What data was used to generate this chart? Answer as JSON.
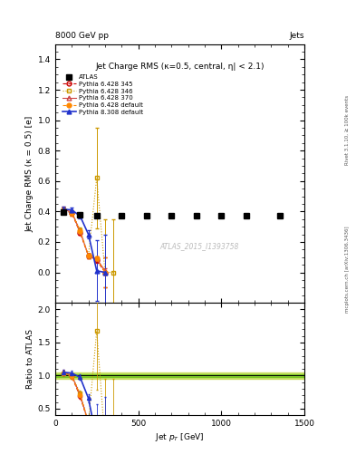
{
  "title": "Jet Charge RMS (κ=0.5, central, η| < 2.1)",
  "header_left": "8000 GeV pp",
  "header_right": "Jets",
  "ylabel_main": "Jet Charge RMS (kappa = 0.5) [e]",
  "ylabel_ratio": "Ratio to ATLAS",
  "xlabel": "Jet p_{T} [GeV]",
  "watermark": "ATLAS_2015_I1393758",
  "right_label": "mcplots.cern.ch [arXiv:1306.3436]",
  "right_label2": "Rivet 3.1.10, ≥ 100k events",
  "atlas_x": [
    50,
    150,
    250,
    400,
    550,
    700,
    850,
    1000,
    1150,
    1350
  ],
  "atlas_y": [
    0.395,
    0.38,
    0.37,
    0.37,
    0.37,
    0.37,
    0.37,
    0.37,
    0.37,
    0.37
  ],
  "atlas_yerr": [
    0.01,
    0.005,
    0.005,
    0.005,
    0.005,
    0.005,
    0.005,
    0.005,
    0.005,
    0.005
  ],
  "p6_345_x": [
    50,
    100,
    150,
    200,
    250,
    300
  ],
  "p6_345_y": [
    0.41,
    0.39,
    0.26,
    0.11,
    0.08,
    0.0
  ],
  "p6_345_yerr": [
    0.015,
    0.015,
    0.015,
    0.015,
    0.015,
    0.1
  ],
  "p6_346_x": [
    50,
    100,
    150,
    200,
    250,
    300,
    350
  ],
  "p6_346_y": [
    0.41,
    0.395,
    0.28,
    0.11,
    0.62,
    0.0,
    0.0
  ],
  "p6_346_yerr": [
    0.015,
    0.015,
    0.015,
    0.015,
    0.33,
    0.35,
    0.35
  ],
  "p6_370_x": [
    50,
    100,
    150,
    200,
    250,
    300
  ],
  "p6_370_y": [
    0.415,
    0.395,
    0.27,
    0.11,
    0.09,
    0.01
  ],
  "p6_370_yerr": [
    0.015,
    0.015,
    0.015,
    0.015,
    0.015,
    0.015
  ],
  "p6_def_x": [
    50,
    100,
    150,
    200,
    250,
    300
  ],
  "p6_def_y": [
    0.41,
    0.39,
    0.27,
    0.11,
    0.09,
    0.0
  ],
  "p6_def_yerr": [
    0.015,
    0.015,
    0.015,
    0.015,
    0.015,
    0.1
  ],
  "p8_def_x": [
    50,
    100,
    150,
    200,
    250,
    300
  ],
  "p8_def_y": [
    0.415,
    0.41,
    0.37,
    0.25,
    0.01,
    0.0
  ],
  "p8_def_yerr": [
    0.015,
    0.015,
    0.015,
    0.025,
    0.2,
    0.25
  ],
  "color_p6_345": "#cc0000",
  "color_p6_346": "#cc9900",
  "color_p6_370": "#cc4444",
  "color_p6_def": "#ff8800",
  "color_p8_def": "#2233cc",
  "color_atlas": "#000000",
  "xlim": [
    0,
    1500
  ],
  "ylim_main": [
    -0.2,
    1.5
  ],
  "ylim_ratio": [
    0.4,
    2.1
  ],
  "yticks_main": [
    0.0,
    0.2,
    0.4,
    0.6,
    0.8,
    1.0,
    1.2,
    1.4
  ],
  "yticks_ratio": [
    0.5,
    1.0,
    1.5,
    2.0
  ],
  "xticks": [
    0,
    500,
    1000,
    1500
  ]
}
